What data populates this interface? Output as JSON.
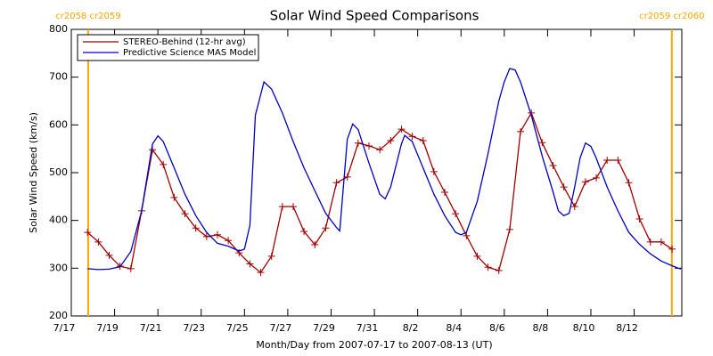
{
  "chart_data": {
    "type": "line",
    "title": "Solar Wind Speed Comparisons",
    "x_label": "Month/Day from 2007-07-17 to 2007-08-13 (UT)",
    "y_label": "Solar Wind Speed (km/s)",
    "xlim": [
      0,
      28.2
    ],
    "ylim": [
      200,
      800
    ],
    "xticks": [
      {
        "value": 0,
        "label": "7/17"
      },
      {
        "value": 2,
        "label": "7/19"
      },
      {
        "value": 4,
        "label": "7/21"
      },
      {
        "value": 6,
        "label": "7/23"
      },
      {
        "value": 8,
        "label": "7/25"
      },
      {
        "value": 10,
        "label": "7/27"
      },
      {
        "value": 12,
        "label": "7/29"
      },
      {
        "value": 14,
        "label": "7/31"
      },
      {
        "value": 16,
        "label": "8/2"
      },
      {
        "value": 18,
        "label": "8/4"
      },
      {
        "value": 20,
        "label": "8/6"
      },
      {
        "value": 22,
        "label": "8/8"
      },
      {
        "value": 24,
        "label": "8/10"
      },
      {
        "value": 26,
        "label": "8/12"
      }
    ],
    "yticks": [
      200,
      300,
      400,
      500,
      600,
      700,
      800
    ],
    "legend": "upper left",
    "vlines": [
      {
        "x": 0.78,
        "label": "cr2058 cr2059",
        "color": "#ffa500"
      },
      {
        "x": 27.74,
        "label": "cr2059 cr2060",
        "color": "#ffa500"
      }
    ],
    "series": [
      {
        "name": "STEREO-Behind (12-hr avg)",
        "color": "#a00000",
        "marker": "+",
        "x": [
          0.75,
          1.25,
          1.75,
          2.25,
          2.75,
          3.25,
          3.75,
          4.25,
          4.75,
          5.25,
          5.75,
          6.25,
          6.75,
          7.25,
          7.75,
          8.25,
          8.75,
          9.25,
          9.75,
          10.25,
          10.75,
          11.25,
          11.75,
          12.25,
          12.75,
          13.25,
          13.75,
          14.25,
          14.75,
          15.25,
          15.75,
          16.25,
          16.75,
          17.25,
          17.75,
          18.25,
          18.75,
          19.25,
          19.75,
          20.25,
          20.75,
          21.25,
          21.75,
          22.25,
          22.75,
          23.25,
          23.75,
          24.25,
          24.75,
          25.25,
          25.75,
          26.25,
          26.75,
          27.25,
          27.75
        ],
        "values": [
          375,
          355,
          327,
          304,
          299,
          420,
          548,
          517,
          448,
          414,
          384,
          366,
          370,
          358,
          332,
          309,
          291,
          325,
          429,
          429,
          377,
          349,
          384,
          479,
          491,
          562,
          556,
          548,
          567,
          591,
          576,
          567,
          502,
          459,
          414,
          368,
          325,
          302,
          295,
          381,
          586,
          625,
          563,
          515,
          470,
          429,
          481,
          489,
          526,
          526,
          479,
          403,
          355,
          355,
          340
        ]
      },
      {
        "name": "Predictive Science MAS Model",
        "color": "#0000c0",
        "x": [
          0.75,
          1.25,
          1.75,
          2.25,
          2.75,
          3.25,
          3.75,
          4.0,
          4.25,
          4.75,
          5.25,
          5.75,
          6.25,
          6.75,
          7.25,
          7.75,
          8.0,
          8.25,
          8.5,
          8.9,
          9.25,
          9.75,
          10.25,
          10.75,
          11.25,
          11.75,
          12.25,
          12.4,
          12.75,
          13.0,
          13.25,
          13.75,
          14.25,
          14.5,
          14.75,
          15.25,
          15.4,
          15.75,
          16.25,
          16.75,
          17.25,
          17.75,
          18.0,
          18.25,
          18.75,
          19.25,
          19.75,
          20.0,
          20.25,
          20.5,
          20.75,
          21.25,
          21.75,
          22.25,
          22.5,
          22.75,
          23.0,
          23.25,
          23.5,
          23.75,
          24.0,
          24.25,
          24.75,
          25.25,
          25.75,
          26.25,
          26.75,
          27.25,
          27.75,
          28.15
        ],
        "values": [
          299,
          297,
          298,
          303,
          335,
          420,
          560,
          577,
          565,
          510,
          455,
          410,
          375,
          352,
          346,
          336,
          340,
          390,
          620,
          690,
          675,
          625,
          565,
          510,
          462,
          415,
          385,
          378,
          570,
          602,
          590,
          520,
          455,
          445,
          470,
          560,
          578,
          565,
          510,
          455,
          410,
          375,
          370,
          375,
          440,
          540,
          650,
          690,
          718,
          715,
          690,
          620,
          535,
          460,
          420,
          410,
          415,
          470,
          530,
          562,
          555,
          530,
          470,
          420,
          375,
          350,
          330,
          315,
          305,
          298
        ]
      }
    ]
  }
}
